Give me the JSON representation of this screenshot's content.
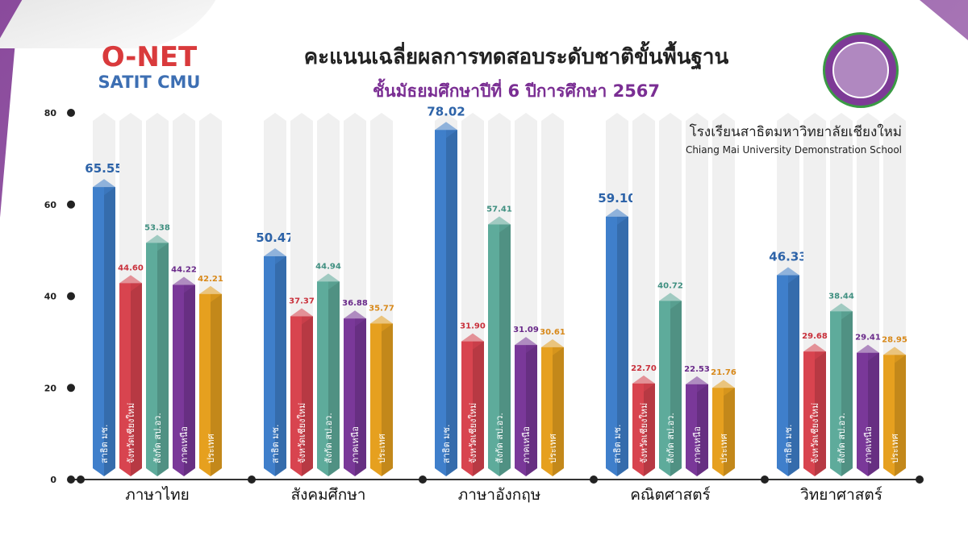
{
  "brand": {
    "title": "O-NET",
    "subtitle": "SATIT CMU"
  },
  "header": {
    "title": "คะแนนเฉลี่ยผลการทดสอบระดับชาติขั้นพื้นฐาน",
    "subtitle": "ชั้นมัธยมศึกษาปีที่ 6 ปีการศึกษา 2567"
  },
  "school": {
    "name_th": "โรงเรียนสาธิตมหาวิทยาลัยเชียงใหม่",
    "name_en": "Chiang Mai University Demonstration School"
  },
  "colors": {
    "blue": "#3f7fcb",
    "red": "#d8444f",
    "teal": "#5eab9b",
    "purple": "#7a3899",
    "orange": "#e6a01f"
  },
  "chart_data": {
    "type": "bar",
    "title": "คะแนนเฉลี่ยผลการทดสอบระดับชาติขั้นพื้นฐาน",
    "ylim": [
      0,
      80
    ],
    "yticks": [
      "0",
      "20",
      "40",
      "60",
      "80"
    ],
    "categories": [
      "ภาษาไทย",
      "สังคมศึกษา",
      "ภาษาอังกฤษ",
      "คณิตศาสตร์",
      "วิทยาศาสตร์"
    ],
    "series": [
      {
        "name": "สาธิต มช.",
        "values": [
          65.55,
          50.47,
          78.02,
          59.1,
          46.33
        ],
        "labels": [
          "65.55",
          "50.47",
          "78.02",
          "59.10",
          "46.33"
        ]
      },
      {
        "name": "จังหวัดเชียงใหม่",
        "values": [
          44.6,
          37.37,
          31.9,
          22.7,
          29.68
        ],
        "labels": [
          "44.60",
          "37.37",
          "31.90",
          "22.70",
          "29.68"
        ]
      },
      {
        "name": "สังกัด สป.อว.",
        "values": [
          53.38,
          44.94,
          57.41,
          40.72,
          38.44
        ],
        "labels": [
          "53.38",
          "44.94",
          "57.41",
          "40.72",
          "38.44"
        ]
      },
      {
        "name": "ภาคเหนือ",
        "values": [
          44.22,
          36.88,
          31.09,
          22.53,
          29.41
        ],
        "labels": [
          "44.22",
          "36.88",
          "31.09",
          "22.53",
          "29.41"
        ]
      },
      {
        "name": "ประเทศ",
        "values": [
          42.21,
          35.77,
          30.61,
          21.76,
          28.95
        ],
        "labels": [
          "42.21",
          "35.77",
          "30.61",
          "21.76",
          "28.95"
        ]
      }
    ]
  }
}
